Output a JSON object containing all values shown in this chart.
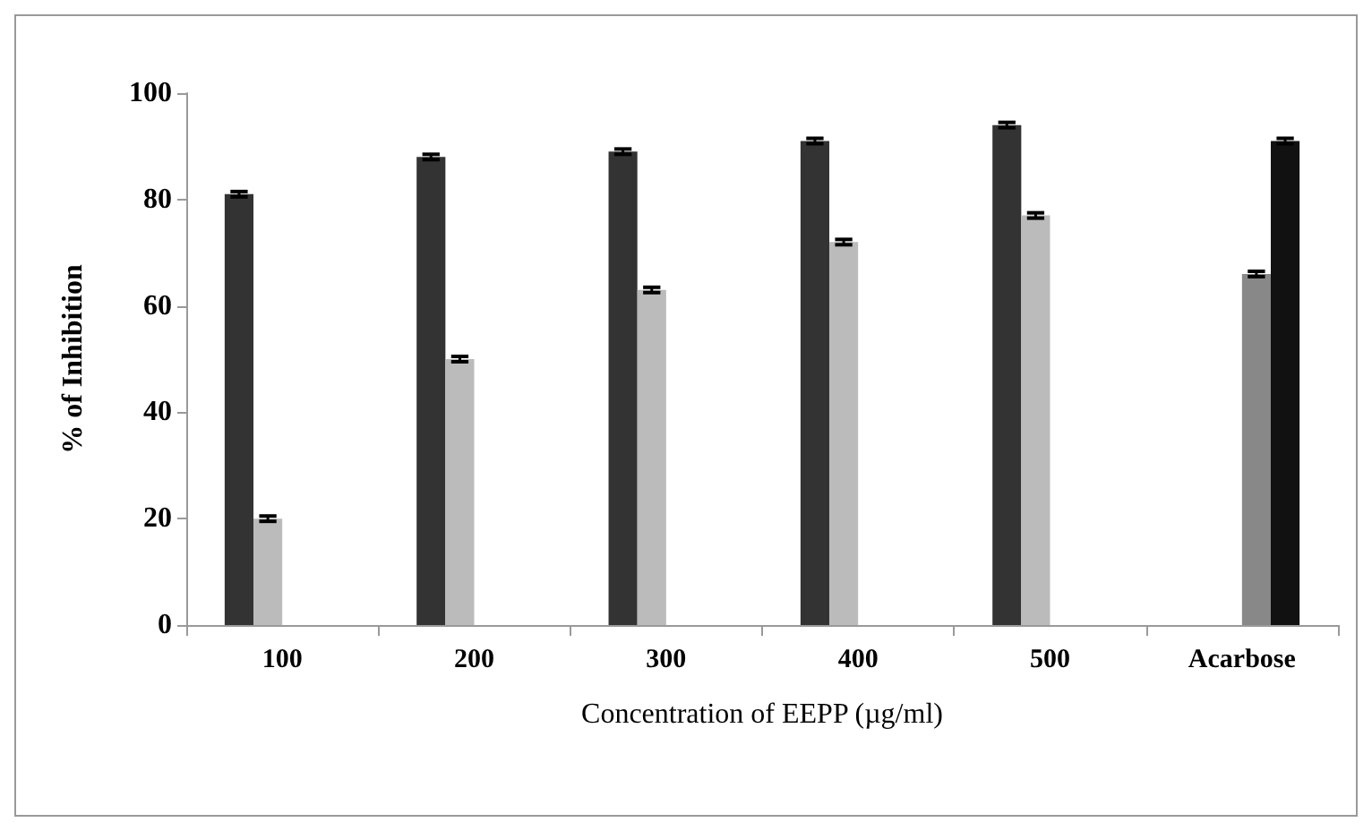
{
  "chart_data": {
    "type": "bar",
    "xlabel": "Concentration of EEPP (µg/ml)",
    "ylabel": "% of Inhibition",
    "categories": [
      "100",
      "200",
      "300",
      "400",
      "500",
      "Acarbose"
    ],
    "series": [
      {
        "color": "#333333",
        "values": [
          81,
          88,
          89,
          91,
          94,
          null
        ],
        "errors": [
          0.5,
          0.5,
          0.5,
          0.5,
          0.5,
          null
        ]
      },
      {
        "color": "#bbbbbb",
        "values": [
          20,
          50,
          63,
          72,
          77,
          null
        ],
        "errors": [
          0.5,
          0.5,
          0.5,
          0.5,
          0.5,
          null
        ]
      },
      {
        "color": "#888888",
        "values": [
          null,
          null,
          null,
          null,
          null,
          66
        ],
        "errors": [
          null,
          null,
          null,
          null,
          null,
          0.5
        ]
      },
      {
        "color": "#111111",
        "values": [
          null,
          null,
          null,
          null,
          null,
          91
        ],
        "errors": [
          null,
          null,
          null,
          null,
          null,
          0.5
        ]
      }
    ],
    "ylim": [
      0,
      100
    ],
    "yticks": [
      0,
      20,
      40,
      60,
      80,
      100
    ]
  }
}
